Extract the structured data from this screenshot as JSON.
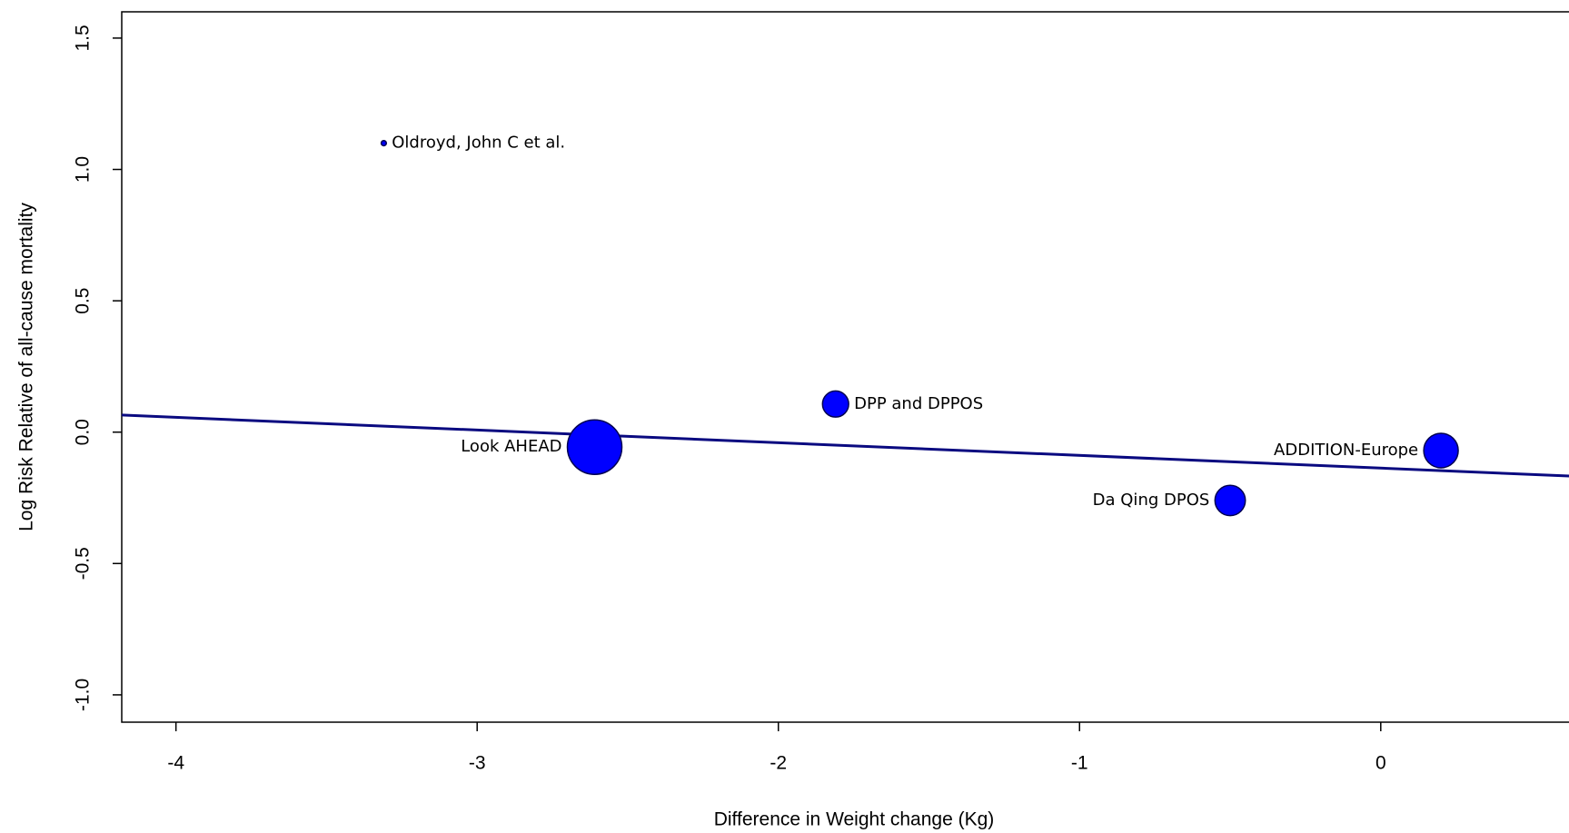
{
  "chart_data": {
    "type": "scatter",
    "x_label": "Difference in Weight change (Kg)",
    "y_label": "Log Risk Relative of all-cause mortality",
    "xlim": [
      -4.18,
      0.625
    ],
    "ylim": [
      -1.104,
      1.6
    ],
    "xticks": [
      -4,
      -3,
      -2,
      -1,
      0
    ],
    "yticks": [
      {
        "value": -1,
        "label": "-1.0"
      },
      {
        "value": -0.5,
        "label": "-0.5"
      },
      {
        "value": 0,
        "label": "0.0"
      },
      {
        "value": 0.5,
        "label": "0.5"
      },
      {
        "value": 1,
        "label": "1.0"
      },
      {
        "value": 1.5,
        "label": "1.5"
      }
    ],
    "series": [
      {
        "color": "#0000ff",
        "labels": [
          "Oldroyd, John C et al.",
          "Look AHEAD",
          "DPP and DPPOS",
          "Da Qing DPOS",
          "ADDITION-Europe"
        ],
        "x": [
          -3.31,
          -2.61,
          -1.81,
          -0.5,
          0.2
        ],
        "values": [
          1.1,
          -0.057,
          0.107,
          -0.26,
          -0.07
        ],
        "sizes": [
          0.9,
          100,
          23,
          31,
          40
        ]
      }
    ],
    "fit_line": {
      "color": "#0a0a80",
      "x": [
        -4.18,
        0.625
      ],
      "values": [
        0.065,
        -0.167
      ]
    }
  }
}
